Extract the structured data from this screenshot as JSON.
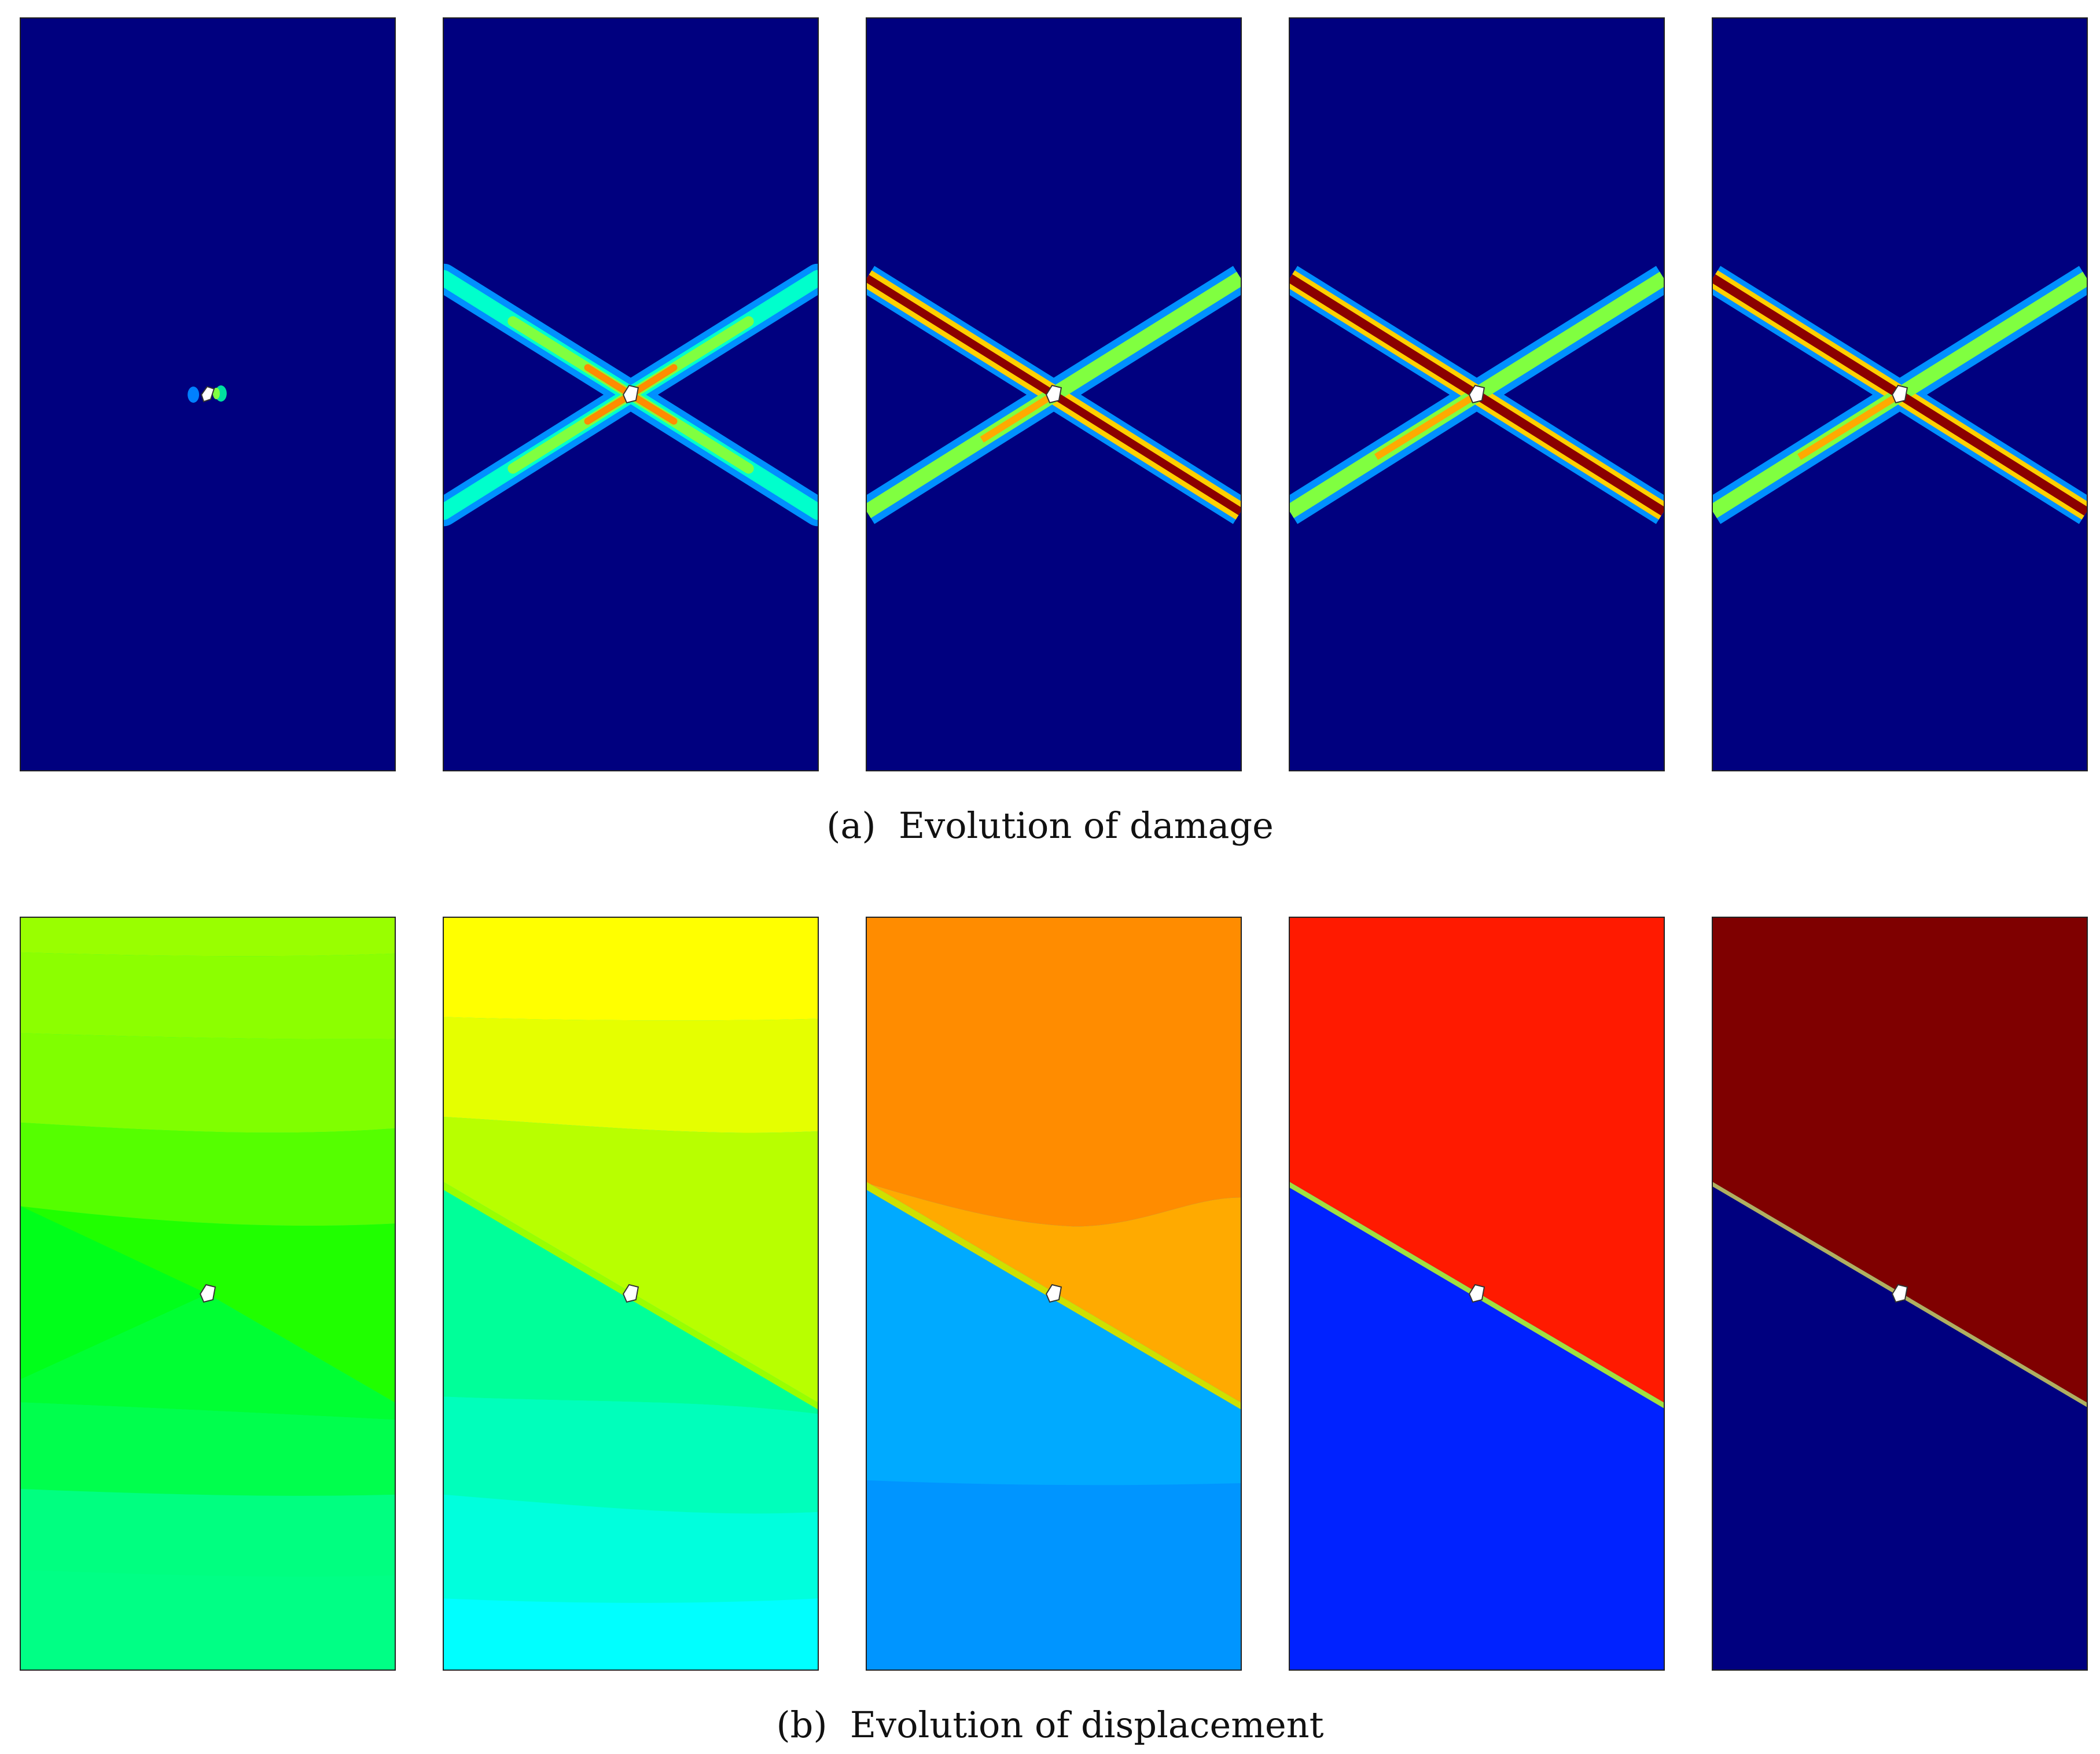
{
  "figure": {
    "caption_a": "(a)  Evolution of damage",
    "caption_b": "(b)  Evolution of displacement",
    "colormap": "jet",
    "colors": {
      "background_blue": "#00007f",
      "damage_peak": "#8b0000",
      "displacement_b1": [
        "#99ff00",
        "#80ff00",
        "#00ff33",
        "#00ff66"
      ],
      "displacement_b2": [
        "#ffff00",
        "#b8ff00",
        "#00ff99",
        "#00ffff"
      ],
      "displacement_b3": [
        "#ff8c00",
        "#ffaa00",
        "#00aaff",
        "#0095ff"
      ],
      "displacement_b4": [
        "#ff1a00",
        "#0022ff"
      ],
      "displacement_b5": [
        "#7f0000",
        "#00007f"
      ]
    }
  }
}
